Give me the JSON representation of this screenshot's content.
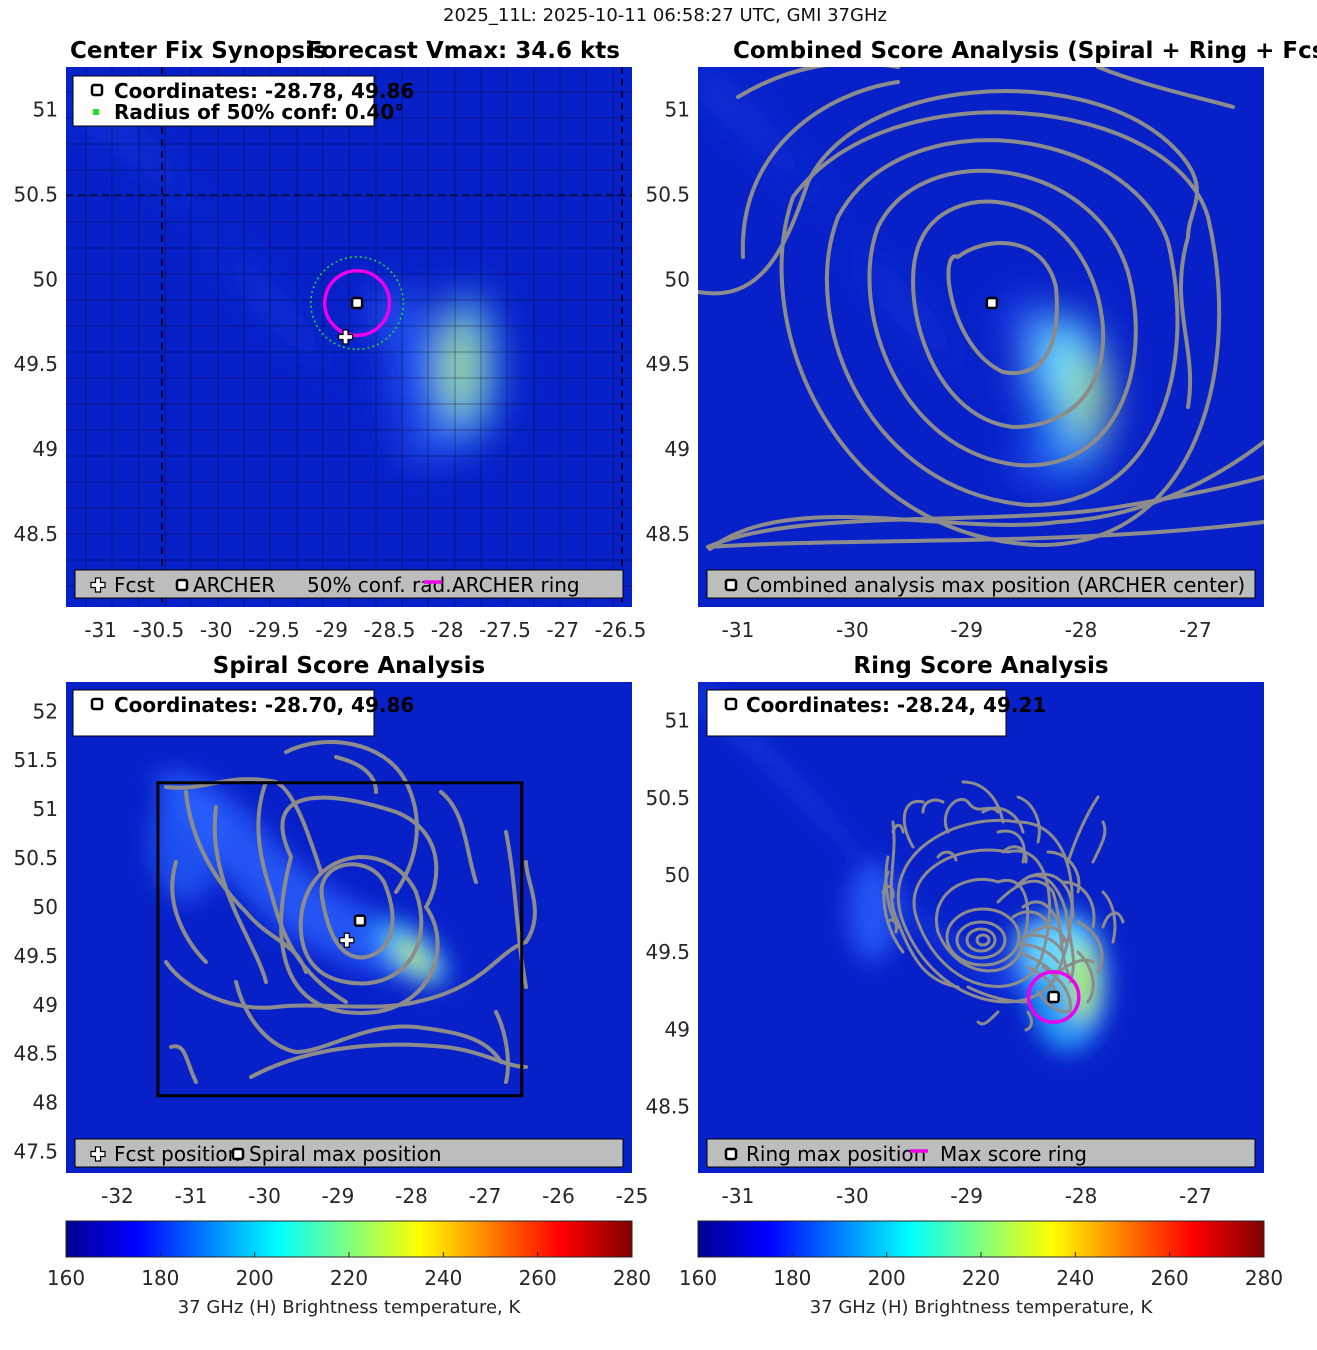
{
  "figure_title": "2025_11L: 2025-10-11 06:58:27 UTC, GMI 37GHz",
  "colors": {
    "marker_pink": "#ee00ee",
    "contour_gray": "#8c8c8c",
    "conf_green": "#22dd22",
    "legend_gray": "#bdbdbd"
  },
  "chart_data": [
    {
      "type": "heatmap",
      "panel": "center-fix",
      "title_left": "Center Fix Synopsis",
      "title_right": "Forecast Vmax: 34.6 kts",
      "xlim": [
        -31.3,
        -26.4
      ],
      "ylim": [
        48.07,
        51.25
      ],
      "xticks": [
        -31,
        -30.5,
        -30,
        -29.5,
        -29,
        -28.5,
        -28,
        -27.5,
        -27,
        -26.5
      ],
      "xtick_labels": [
        "-31",
        "-30.5",
        "-30",
        "-29.5",
        "-29",
        "-28.5",
        "-28",
        "-27.5",
        "-27",
        "-26.5"
      ],
      "yticks": [
        48.5,
        49,
        49.5,
        50,
        50.5,
        51
      ],
      "ytick_labels": [
        "48.5",
        "49",
        "49.5",
        "50",
        "50.5",
        "51"
      ],
      "info_lines": [
        "Coordinates: -28.78, 49.86",
        "Radius of 50% conf: 0.40°"
      ],
      "legend": [
        "Fcst",
        "ARCHER",
        "50% conf. rad.",
        "ARCHER ring"
      ],
      "fcst": [
        -28.88,
        49.66
      ],
      "archer": [
        -28.78,
        49.86
      ],
      "ring_radius_deg": 0.28,
      "conf_radius_deg": 0.4
    },
    {
      "type": "heatmap",
      "panel": "combined",
      "title": "Combined Score Analysis (Spiral + Ring + Fcst_Pe",
      "xlim": [
        -31.35,
        -26.4
      ],
      "ylim": [
        48.07,
        51.25
      ],
      "xticks": [
        -31,
        -30,
        -29,
        -28,
        -27
      ],
      "xtick_labels": [
        "-31",
        "-30",
        "-29",
        "-28",
        "-27"
      ],
      "yticks": [
        48.5,
        49,
        49.5,
        50,
        50.5,
        51
      ],
      "ytick_labels": [
        "48.5",
        "49",
        "49.5",
        "50",
        "50.5",
        "51"
      ],
      "legend": [
        "Combined analysis max position (ARCHER center)"
      ],
      "archer": [
        -28.78,
        49.86
      ]
    },
    {
      "type": "heatmap",
      "panel": "spiral",
      "title": "Spiral Score Analysis",
      "xlim": [
        -32.7,
        -25.0
      ],
      "ylim": [
        47.28,
        52.3
      ],
      "xticks": [
        -32,
        -31,
        -30,
        -29,
        -28,
        -27,
        -26,
        -25
      ],
      "xtick_labels": [
        "-32",
        "-31",
        "-30",
        "-29",
        "-28",
        "-27",
        "-26",
        "-25"
      ],
      "yticks": [
        47.5,
        48,
        48.5,
        49,
        49.5,
        50,
        50.5,
        51,
        51.5,
        52
      ],
      "ytick_labels": [
        "47.5",
        "48",
        "48.5",
        "49",
        "49.5",
        "50",
        "50.5",
        "51",
        "51.5",
        "52"
      ],
      "info_lines": [
        "Coordinates: -28.70, 49.86"
      ],
      "legend": [
        "Fcst position",
        "Spiral max position"
      ],
      "fcst": [
        -28.88,
        49.66
      ],
      "spiral_max": [
        -28.7,
        49.86
      ],
      "search_box": {
        "x": [
          -31.45,
          -26.5
        ],
        "y": [
          48.07,
          51.27
        ]
      }
    },
    {
      "type": "heatmap",
      "panel": "ring",
      "title": "Ring Score Analysis",
      "xlim": [
        -31.35,
        -26.4
      ],
      "ylim": [
        48.07,
        51.25
      ],
      "xticks": [
        -31,
        -30,
        -29,
        -28,
        -27
      ],
      "xtick_labels": [
        "-31",
        "-30",
        "-29",
        "-28",
        "-27"
      ],
      "yticks": [
        48.5,
        49,
        49.5,
        50,
        50.5,
        51
      ],
      "ytick_labels": [
        "48.5",
        "49",
        "49.5",
        "50",
        "50.5",
        "51"
      ],
      "info_lines": [
        "Coordinates: -28.24, 49.21"
      ],
      "legend": [
        "Ring max position",
        "Max score ring"
      ],
      "ring_max": [
        -28.24,
        49.21
      ],
      "ring_radius_deg": 0.22
    }
  ],
  "colorbars": [
    {
      "label": "37 GHz (H) Brightness temperature, K",
      "range": [
        160,
        280
      ],
      "ticks": [
        160,
        180,
        200,
        220,
        240,
        260,
        280
      ],
      "tick_labels": [
        "160",
        "180",
        "200",
        "220",
        "240",
        "260",
        "280"
      ]
    },
    {
      "label": "37 GHz (H) Brightness temperature, K",
      "range": [
        160,
        280
      ],
      "ticks": [
        160,
        180,
        200,
        220,
        240,
        260,
        280
      ],
      "tick_labels": [
        "160",
        "180",
        "200",
        "220",
        "240",
        "260",
        "280"
      ]
    }
  ]
}
